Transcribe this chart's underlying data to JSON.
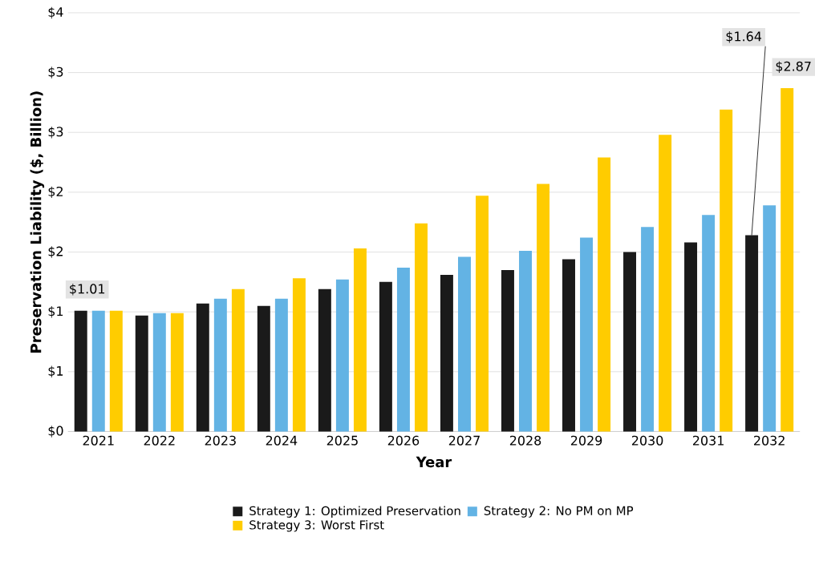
{
  "chart_data": {
    "type": "bar",
    "xlabel": "Year",
    "ylabel": "Preservation Liability ($, Billion)",
    "categories": [
      "2021",
      "2022",
      "2023",
      "2024",
      "2025",
      "2026",
      "2027",
      "2028",
      "2029",
      "2030",
      "2031",
      "2032"
    ],
    "series": [
      {
        "name": "Strategy 1: Optimized Preservation",
        "color": "#1a1a1a",
        "values": [
          1.01,
          0.97,
          1.07,
          1.05,
          1.19,
          1.25,
          1.31,
          1.35,
          1.44,
          1.5,
          1.58,
          1.64
        ],
        "value_labels": [
          "$1.01",
          null,
          null,
          null,
          null,
          null,
          null,
          null,
          null,
          null,
          null,
          "$1.64"
        ]
      },
      {
        "name": "Strategy 2: No PM on MP",
        "color": "#63b3e4",
        "values": [
          1.01,
          0.99,
          1.11,
          1.11,
          1.27,
          1.37,
          1.46,
          1.51,
          1.62,
          1.71,
          1.81,
          1.89
        ]
      },
      {
        "name": "Strategy 3: Worst First",
        "color": "#ffcc00",
        "values": [
          1.01,
          0.99,
          1.19,
          1.28,
          1.53,
          1.74,
          1.97,
          2.07,
          2.29,
          2.48,
          2.69,
          2.87
        ],
        "value_labels": [
          null,
          null,
          null,
          null,
          null,
          null,
          null,
          null,
          null,
          null,
          null,
          "$2.87"
        ]
      }
    ],
    "ylim": [
      0,
      3.5
    ],
    "yticks": [
      {
        "value": 0,
        "label": "$0"
      },
      {
        "value": 0.5,
        "label": "$1"
      },
      {
        "value": 1,
        "label": "$1"
      },
      {
        "value": 1.5,
        "label": "$2"
      },
      {
        "value": 2,
        "label": "$2"
      },
      {
        "value": 2.5,
        "label": "$3"
      },
      {
        "value": 3,
        "label": "$3"
      },
      {
        "value": 3.5,
        "label": "$4"
      }
    ],
    "grid": "y",
    "legend": "bottom"
  }
}
